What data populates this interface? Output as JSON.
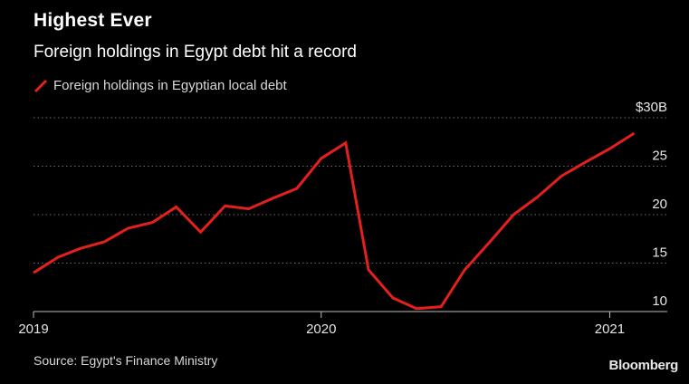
{
  "header": {
    "title": "Highest Ever",
    "subtitle": "Foreign holdings in Egypt debt hit a record"
  },
  "footer": {
    "source": "Source: Egypt's Finance Ministry",
    "brand": "Bloomberg"
  },
  "colors": {
    "background": "#000000",
    "series": "#e3201b",
    "grid": "#6e6e6e",
    "text": "#ffffff"
  },
  "chart_data": {
    "type": "line",
    "title": "Highest Ever",
    "subtitle": "Foreign holdings in Egypt debt hit a record",
    "xlabel": "",
    "ylabel": "",
    "ylim": [
      10,
      30
    ],
    "xlim": [
      "2019-01-01",
      "2021-03-15"
    ],
    "y_ticks": [
      {
        "value": 30,
        "label": "$30B"
      },
      {
        "value": 25,
        "label": "25"
      },
      {
        "value": 20,
        "label": "20"
      },
      {
        "value": 15,
        "label": "15"
      },
      {
        "value": 10,
        "label": "10"
      }
    ],
    "x_ticks": [
      {
        "value": "2019-01-01",
        "label": "2019"
      },
      {
        "value": "2020-01-01",
        "label": "2020"
      },
      {
        "value": "2021-01-01",
        "label": "2021"
      }
    ],
    "grid": "horizontal dotted",
    "legend_position": "top-left",
    "series": [
      {
        "name": "Foreign holdings in Egyptian local debt",
        "color": "#e3201b",
        "x": [
          "2019-01",
          "2019-02",
          "2019-03",
          "2019-04",
          "2019-05",
          "2019-06",
          "2019-07",
          "2019-08",
          "2019-09",
          "2019-10",
          "2019-11",
          "2019-12",
          "2020-01",
          "2020-02",
          "2020-03",
          "2020-04",
          "2020-05",
          "2020-06",
          "2020-07",
          "2020-08",
          "2020-09",
          "2020-10",
          "2020-11",
          "2020-12",
          "2021-01",
          "2021-02"
        ],
        "values": [
          14.0,
          15.6,
          16.5,
          17.2,
          18.6,
          19.2,
          20.8,
          18.2,
          20.9,
          20.6,
          21.7,
          22.7,
          25.8,
          27.4,
          14.3,
          11.4,
          10.3,
          10.5,
          14.3,
          17.1,
          20.0,
          21.8,
          24.0,
          25.4,
          26.8,
          28.4
        ]
      }
    ]
  }
}
